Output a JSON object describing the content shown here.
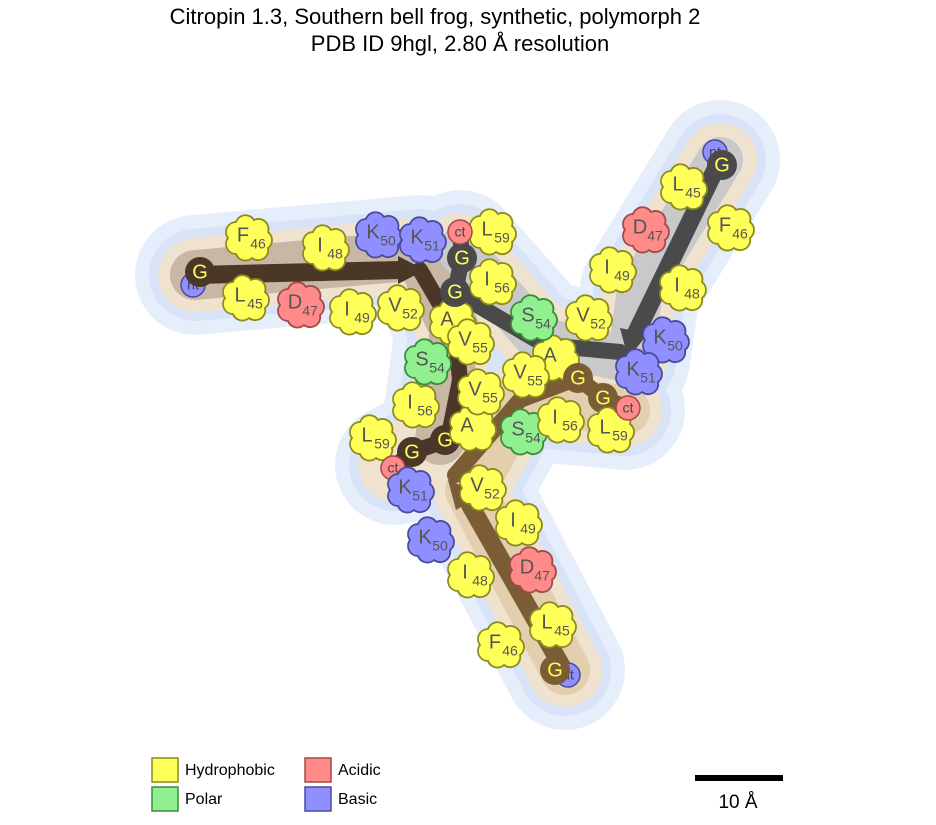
{
  "title": {
    "line1": "Citropin 1.3, Southern bell frog, synthetic, polymorph 2",
    "line2": "PDB ID 9hgl, 2.80 Å resolution"
  },
  "chains": [
    {
      "residues": [
        {
          "res": "nt"
        },
        {
          "res": "G"
        },
        {
          "res": "F",
          "num": 46
        },
        {
          "res": "L",
          "num": 45
        },
        {
          "res": "D",
          "num": 47
        },
        {
          "res": "I",
          "num": 48
        },
        {
          "res": "I",
          "num": 49
        },
        {
          "res": "K",
          "num": 50
        },
        {
          "res": "K",
          "num": 51
        },
        {
          "res": "V",
          "num": 52
        },
        {
          "res": "A"
        },
        {
          "res": "V",
          "num": 55
        },
        {
          "res": "S",
          "num": 54
        },
        {
          "res": "I",
          "num": 56
        },
        {
          "res": "G"
        },
        {
          "res": "L",
          "num": 59
        },
        {
          "res": "G"
        },
        {
          "res": "ct"
        }
      ]
    },
    {
      "residues": [
        {
          "res": "nt"
        },
        {
          "res": "G"
        },
        {
          "res": "L",
          "num": 45
        },
        {
          "res": "F",
          "num": 46
        },
        {
          "res": "D",
          "num": 47
        },
        {
          "res": "I",
          "num": 49
        },
        {
          "res": "I",
          "num": 48
        },
        {
          "res": "V",
          "num": 52
        },
        {
          "res": "K",
          "num": 50
        },
        {
          "res": "K",
          "num": 51
        },
        {
          "res": "A"
        },
        {
          "res": "S",
          "num": 54
        },
        {
          "res": "I",
          "num": 56
        },
        {
          "res": "G"
        },
        {
          "res": "G"
        },
        {
          "res": "L",
          "num": 59
        },
        {
          "res": "ct"
        }
      ]
    },
    {
      "residues": [
        {
          "res": "nt"
        },
        {
          "res": "G"
        },
        {
          "res": "L",
          "num": 45
        },
        {
          "res": "F",
          "num": 46
        },
        {
          "res": "D",
          "num": 47
        },
        {
          "res": "I",
          "num": 48
        },
        {
          "res": "I",
          "num": 49
        },
        {
          "res": "K",
          "num": 50
        },
        {
          "res": "K",
          "num": 51
        },
        {
          "res": "V",
          "num": 52
        },
        {
          "res": "A"
        },
        {
          "res": "V",
          "num": 55
        },
        {
          "res": "V",
          "num": 55
        },
        {
          "res": "S",
          "num": 54
        },
        {
          "res": "I",
          "num": 56
        },
        {
          "res": "G"
        },
        {
          "res": "G"
        },
        {
          "res": "L",
          "num": 59
        },
        {
          "res": "ct"
        }
      ]
    }
  ],
  "legend": [
    "Hydrophobic",
    "Polar",
    "Acidic",
    "Basic"
  ],
  "scale_bar": {
    "label": "10 Å"
  }
}
